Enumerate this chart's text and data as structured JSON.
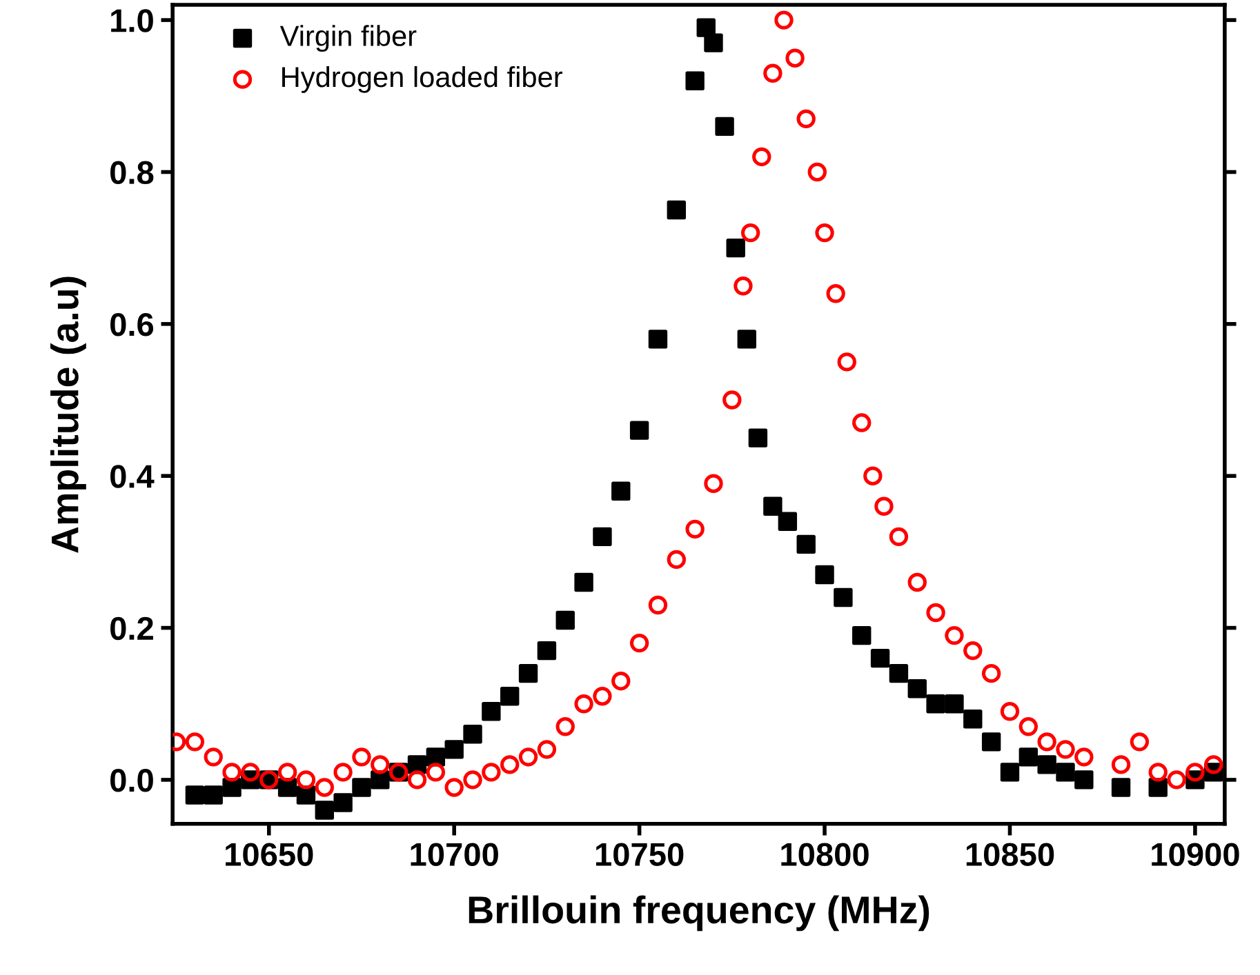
{
  "chart_data": {
    "type": "scatter",
    "xlabel": "Brillouin frequency (MHz)",
    "ylabel": "Amplitude (a.u)",
    "xlim": [
      10624,
      10908
    ],
    "ylim": [
      -0.058,
      1.02
    ],
    "xticks": [
      10650,
      10700,
      10750,
      10800,
      10850,
      10900
    ],
    "yticks": [
      {
        "value": 0,
        "label": "0.0"
      },
      0.2,
      0.4,
      0.6,
      0.8,
      {
        "value": 1,
        "label": "1.0"
      }
    ],
    "legend": "top left",
    "grid": false,
    "series": [
      {
        "name": "Virgin fiber",
        "color": "#000000",
        "marker": "square",
        "x": [
          10630,
          10635,
          10640,
          10645,
          10650,
          10655,
          10660,
          10665,
          10670,
          10675,
          10680,
          10685,
          10690,
          10695,
          10700,
          10705,
          10710,
          10715,
          10720,
          10725,
          10730,
          10735,
          10740,
          10745,
          10750,
          10755,
          10760,
          10765,
          10768,
          10770,
          10773,
          10776,
          10779,
          10782,
          10786,
          10790,
          10795,
          10800,
          10805,
          10810,
          10815,
          10820,
          10825,
          10830,
          10835,
          10840,
          10845,
          10850,
          10855,
          10860,
          10865,
          10870,
          10880,
          10890,
          10900,
          10905
        ],
        "values": [
          -0.02,
          -0.02,
          -0.01,
          0.0,
          0.0,
          -0.01,
          -0.02,
          -0.04,
          -0.03,
          -0.01,
          0.0,
          0.01,
          0.02,
          0.03,
          0.04,
          0.06,
          0.09,
          0.11,
          0.14,
          0.17,
          0.21,
          0.26,
          0.32,
          0.38,
          0.46,
          0.58,
          0.75,
          0.92,
          0.99,
          0.97,
          0.86,
          0.7,
          0.58,
          0.45,
          0.36,
          0.34,
          0.31,
          0.27,
          0.24,
          0.19,
          0.16,
          0.14,
          0.12,
          0.1,
          0.1,
          0.08,
          0.05,
          0.01,
          0.03,
          0.02,
          0.01,
          0.0,
          -0.01,
          -0.01,
          0.0,
          0.01
        ]
      },
      {
        "name": "Hydrogen loaded fiber",
        "color": "#ff0000",
        "marker": "circle",
        "x": [
          10625,
          10630,
          10635,
          10640,
          10645,
          10650,
          10655,
          10660,
          10665,
          10670,
          10675,
          10680,
          10685,
          10690,
          10695,
          10700,
          10705,
          10710,
          10715,
          10720,
          10725,
          10730,
          10735,
          10740,
          10745,
          10750,
          10755,
          10760,
          10765,
          10770,
          10775,
          10778,
          10780,
          10783,
          10786,
          10789,
          10792,
          10795,
          10798,
          10800,
          10803,
          10806,
          10810,
          10813,
          10816,
          10820,
          10825,
          10830,
          10835,
          10840,
          10845,
          10850,
          10855,
          10860,
          10865,
          10870,
          10880,
          10885,
          10890,
          10895,
          10900,
          10905
        ],
        "values": [
          0.05,
          0.05,
          0.03,
          0.01,
          0.01,
          0.0,
          0.01,
          0.0,
          -0.01,
          0.01,
          0.03,
          0.02,
          0.01,
          0.0,
          0.01,
          -0.01,
          0.0,
          0.01,
          0.02,
          0.03,
          0.04,
          0.07,
          0.1,
          0.11,
          0.13,
          0.18,
          0.23,
          0.29,
          0.33,
          0.39,
          0.5,
          0.65,
          0.72,
          0.82,
          0.93,
          1.0,
          0.95,
          0.87,
          0.8,
          0.72,
          0.64,
          0.55,
          0.47,
          0.4,
          0.36,
          0.32,
          0.26,
          0.22,
          0.19,
          0.17,
          0.14,
          0.09,
          0.07,
          0.05,
          0.04,
          0.03,
          0.02,
          0.05,
          0.01,
          0.0,
          0.01,
          0.02
        ]
      }
    ]
  }
}
